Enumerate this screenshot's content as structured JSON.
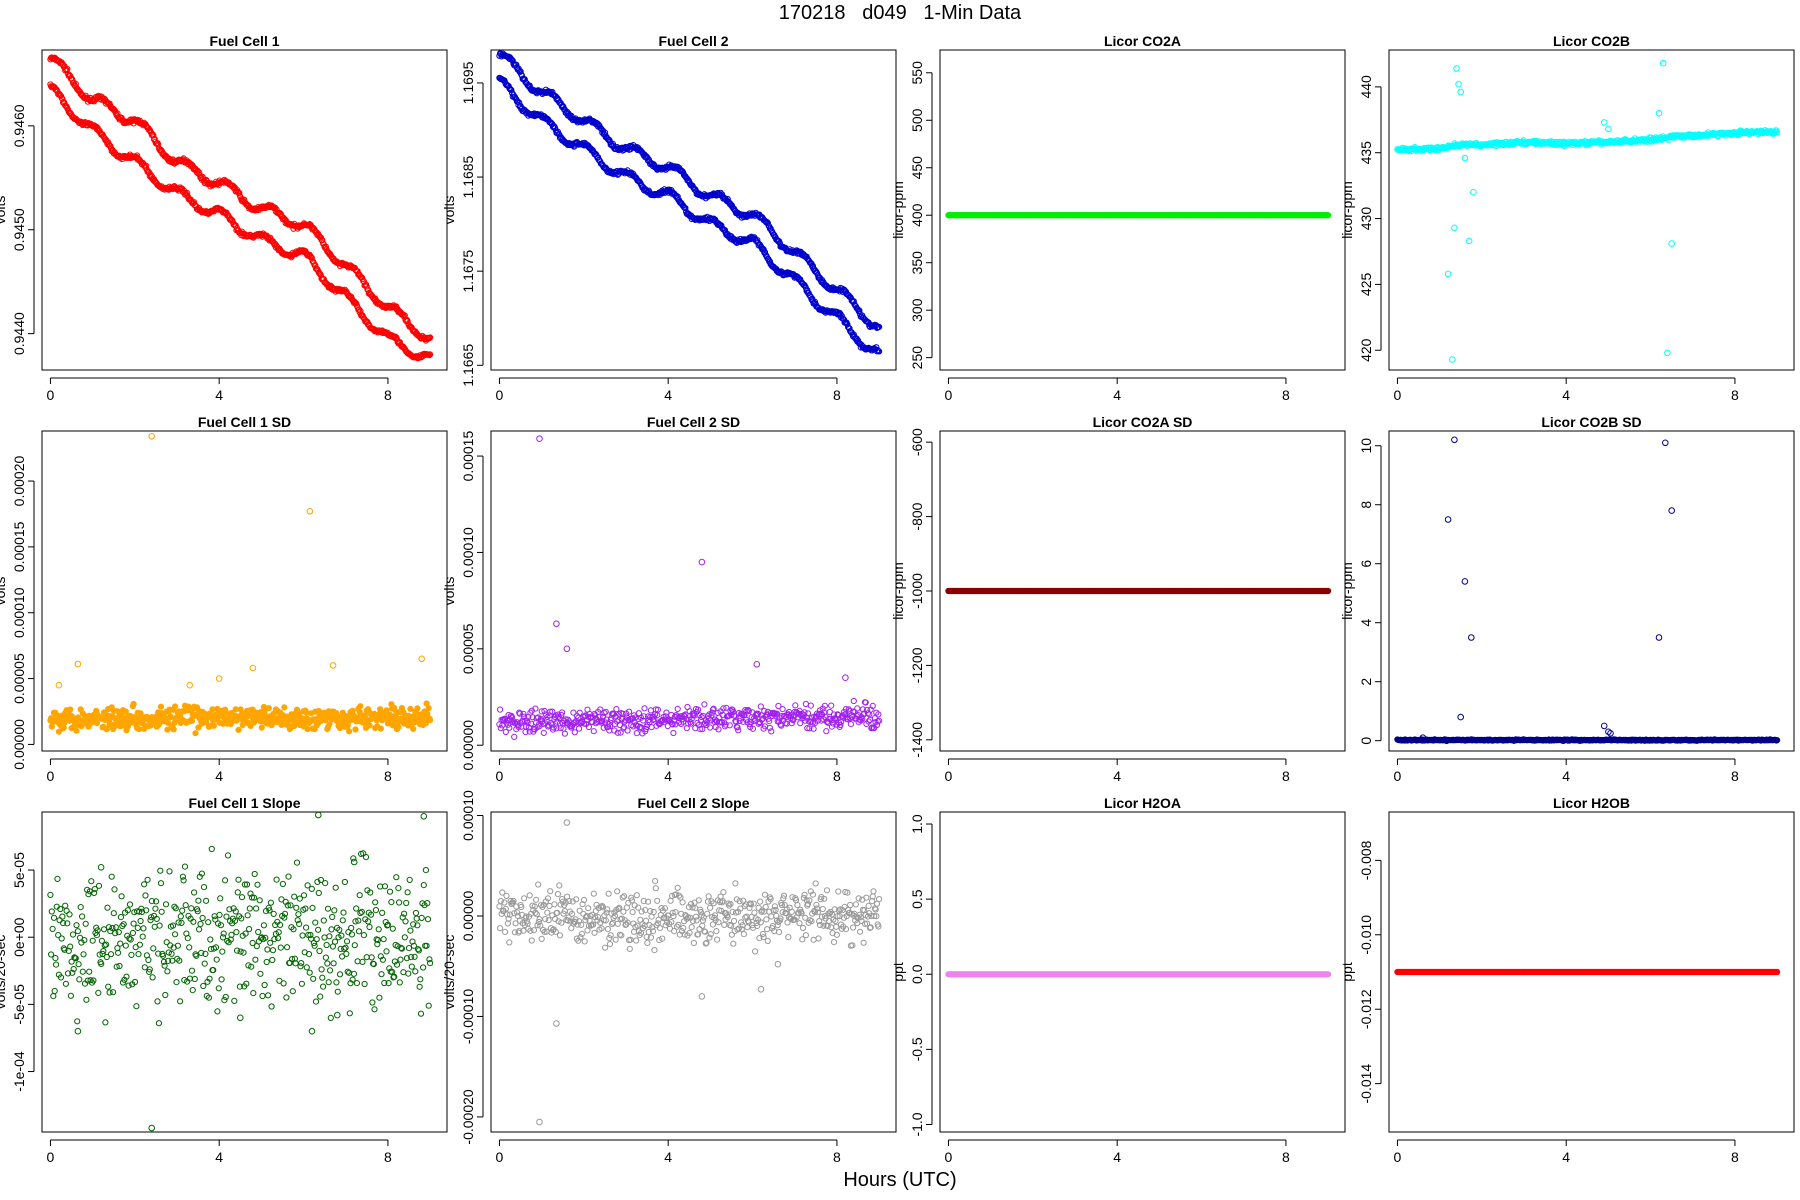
{
  "page": {
    "title": "170218   d049   1-Min Data",
    "xlabel": "Hours (UTC)"
  },
  "chart_data": [
    {
      "id": "fc1",
      "type": "scatter",
      "title": "Fuel Cell 1",
      "xlabel": "",
      "ylabel": "volts",
      "xlim": [
        -0.2,
        9.4
      ],
      "xticks": [
        0,
        4,
        8
      ],
      "xtick_labels": [
        "0",
        "4",
        "8"
      ],
      "ylim": [
        0.94365,
        0.94673
      ],
      "yticks": [
        0.944,
        0.945,
        0.946
      ],
      "ytick_labels": [
        "0.9440",
        "0.9450",
        "0.9460"
      ],
      "color": "#ff0000",
      "grid": false,
      "x": [
        0,
        1,
        2,
        3,
        4,
        5,
        6,
        7,
        8,
        9
      ],
      "series": [
        {
          "values": [
            0.94665,
            0.94625,
            0.94605,
            0.94565,
            0.94545,
            0.9452,
            0.94505,
            0.94465,
            0.94425,
            0.94395
          ]
        },
        {
          "values": [
            0.94635,
            0.94595,
            0.94565,
            0.94535,
            0.94515,
            0.9449,
            0.94475,
            0.94435,
            0.94395,
            0.94375
          ]
        }
      ]
    },
    {
      "id": "fc2",
      "type": "scatter",
      "title": "Fuel Cell 2",
      "xlabel": "",
      "ylabel": "volts",
      "xlim": [
        -0.2,
        9.4
      ],
      "xticks": [
        0,
        4,
        8
      ],
      "xtick_labels": [
        "0",
        "4",
        "8"
      ],
      "ylim": [
        1.16645,
        1.16985
      ],
      "yticks": [
        1.1665,
        1.1675,
        1.1685,
        1.1695
      ],
      "ytick_labels": [
        "1.1665",
        "1.1675",
        "1.1685",
        "1.1695"
      ],
      "color": "#0000cd",
      "grid": false,
      "x": [
        0,
        1,
        2,
        3,
        4,
        5,
        6,
        7,
        8,
        9
      ],
      "series": [
        {
          "values": [
            1.1698,
            1.1694,
            1.1691,
            1.1688,
            1.1686,
            1.1683,
            1.1681,
            1.1677,
            1.1673,
            1.1669
          ]
        },
        {
          "values": [
            1.1695,
            1.1691,
            1.1688,
            1.1685,
            1.1683,
            1.168,
            1.1678,
            1.1674,
            1.167,
            1.1666
          ]
        }
      ]
    },
    {
      "id": "co2a",
      "type": "scatter",
      "title": "Licor CO2A",
      "xlabel": "",
      "ylabel": "licor-ppm",
      "xlim": [
        -0.2,
        9.4
      ],
      "xticks": [
        0,
        4,
        8
      ],
      "xtick_labels": [
        "0",
        "4",
        "8"
      ],
      "ylim": [
        237,
        574
      ],
      "yticks": [
        250,
        300,
        350,
        400,
        450,
        500,
        550
      ],
      "ytick_labels": [
        "250",
        "300",
        "350",
        "400",
        "450",
        "500",
        "550"
      ],
      "color": "#00ee00",
      "grid": false,
      "x": [
        0,
        9
      ],
      "series": [
        {
          "values": [
            400,
            400
          ]
        }
      ]
    },
    {
      "id": "co2b",
      "type": "scatter",
      "title": "Licor CO2B",
      "xlabel": "",
      "ylabel": "licor-ppm",
      "xlim": [
        -0.2,
        9.4
      ],
      "xticks": [
        0,
        4,
        8
      ],
      "xtick_labels": [
        "0",
        "4",
        "8"
      ],
      "ylim": [
        418.5,
        442.8
      ],
      "yticks": [
        420,
        425,
        430,
        435,
        440
      ],
      "ytick_labels": [
        "420",
        "425",
        "430",
        "435",
        "440"
      ],
      "color": "#00ffff",
      "grid": false,
      "x": [
        0,
        1,
        1.4,
        2,
        3,
        4,
        5,
        6,
        6.5,
        7,
        8,
        9
      ],
      "series": [
        {
          "values": [
            435.2,
            435.3,
            435.6,
            435.6,
            435.8,
            435.7,
            435.8,
            436.0,
            436.2,
            436.3,
            436.5,
            436.6
          ]
        }
      ],
      "outliers": {
        "x": [
          1.2,
          1.3,
          1.35,
          1.4,
          1.45,
          1.5,
          1.6,
          1.7,
          1.8,
          4.9,
          5.0,
          6.2,
          6.3,
          6.4,
          6.5
        ],
        "y": [
          425.8,
          419.3,
          429.3,
          441.4,
          440.2,
          439.6,
          434.6,
          428.3,
          432.0,
          437.3,
          436.8,
          438.0,
          441.8,
          419.8,
          428.1
        ]
      }
    },
    {
      "id": "fc1sd",
      "type": "scatter",
      "title": "Fuel Cell 1 SD",
      "xlabel": "",
      "ylabel": "volts",
      "xlim": [
        -0.2,
        9.4
      ],
      "xticks": [
        0,
        4,
        8
      ],
      "xtick_labels": [
        "0",
        "4",
        "8"
      ],
      "ylim": [
        -5e-06,
        0.000238
      ],
      "yticks": [
        0,
        5e-05,
        0.0001,
        0.00015,
        0.0002
      ],
      "ytick_labels": [
        "0.00000",
        "0.00005",
        "0.00010",
        "0.00015",
        "0.00020"
      ],
      "color": "#ffa500",
      "grid": false,
      "x": [
        0,
        9
      ],
      "series": [
        {
          "values": [
            2e-05,
            2e-05
          ]
        }
      ],
      "outliers": {
        "x": [
          0.2,
          0.65,
          2.4,
          3.3,
          4.0,
          4.8,
          6.15,
          6.7,
          8.8
        ],
        "y": [
          4.5e-05,
          6.1e-05,
          0.000234,
          4.5e-05,
          5e-05,
          5.8e-05,
          0.000177,
          6e-05,
          6.5e-05
        ]
      }
    },
    {
      "id": "fc2sd",
      "type": "scatter",
      "title": "Fuel Cell 2 SD",
      "xlabel": "",
      "ylabel": "volts",
      "xlim": [
        -0.2,
        9.4
      ],
      "xticks": [
        0,
        4,
        8
      ],
      "xtick_labels": [
        "0",
        "4",
        "8"
      ],
      "ylim": [
        -3e-06,
        0.000163
      ],
      "yticks": [
        0,
        5e-05,
        0.0001,
        0.00015
      ],
      "ytick_labels": [
        "0.00000",
        "0.00005",
        "0.00010",
        "0.00015"
      ],
      "color": "#a020f0",
      "grid": false,
      "x": [
        0,
        9
      ],
      "series": [
        {
          "values": [
            1.2e-05,
            1.5e-05
          ]
        }
      ],
      "outliers": {
        "x": [
          0.95,
          1.35,
          1.6,
          4.8,
          6.1,
          8.2
        ],
        "y": [
          0.000159,
          6.3e-05,
          5e-05,
          9.5e-05,
          4.2e-05,
          3.5e-05
        ]
      }
    },
    {
      "id": "co2asd",
      "type": "scatter",
      "title": "Licor CO2A SD",
      "xlabel": "",
      "ylabel": "licor-ppm",
      "xlim": [
        -0.2,
        9.4
      ],
      "xticks": [
        0,
        4,
        8
      ],
      "xtick_labels": [
        "0",
        "4",
        "8"
      ],
      "ylim": [
        -1430,
        -570
      ],
      "yticks": [
        -1400,
        -1200,
        -1000,
        -800,
        -600
      ],
      "ytick_labels": [
        "-1400",
        "-1200",
        "-1000",
        "-800",
        "-600"
      ],
      "color": "#8b0000",
      "grid": false,
      "x": [
        0,
        9
      ],
      "series": [
        {
          "values": [
            -1000,
            -1000
          ]
        }
      ]
    },
    {
      "id": "co2bsd",
      "type": "scatter",
      "title": "Licor CO2B SD",
      "xlabel": "",
      "ylabel": "licor-ppm",
      "xlim": [
        -0.2,
        9.4
      ],
      "xticks": [
        0,
        4,
        8
      ],
      "xtick_labels": [
        "0",
        "4",
        "8"
      ],
      "ylim": [
        -0.35,
        10.5
      ],
      "yticks": [
        0,
        2,
        4,
        6,
        8,
        10
      ],
      "ytick_labels": [
        "0",
        "2",
        "4",
        "6",
        "8",
        "10"
      ],
      "color": "#00008b",
      "grid": false,
      "x": [
        0,
        9
      ],
      "series": [
        {
          "values": [
            0.02,
            0.02
          ]
        }
      ],
      "outliers": {
        "x": [
          0.6,
          1.2,
          1.35,
          1.5,
          1.6,
          1.75,
          4.9,
          5.0,
          5.05,
          6.2,
          6.35,
          6.5
        ],
        "y": [
          0.1,
          7.5,
          10.2,
          0.8,
          5.4,
          3.5,
          0.5,
          0.3,
          0.25,
          3.5,
          10.1,
          7.8
        ]
      }
    },
    {
      "id": "fc1slope",
      "type": "scatter",
      "title": "Fuel Cell 1 Slope",
      "xlabel": "",
      "ylabel": "volts/20-sec",
      "xlim": [
        -0.2,
        9.4
      ],
      "xticks": [
        0,
        4,
        8
      ],
      "xtick_labels": [
        "0",
        "4",
        "8"
      ],
      "ylim": [
        -0.000145,
        9.32e-05
      ],
      "yticks": [
        -0.0001,
        -5e-05,
        0,
        5e-05
      ],
      "ytick_labels": [
        "-1e-04",
        "-5e-05",
        "0e+00",
        "5e-05"
      ],
      "color": "#006400",
      "grid": false,
      "x": [
        0,
        9
      ],
      "series": [
        {
          "values": [
            0,
            0
          ]
        }
      ],
      "spread": 2.5e-05,
      "outliers": {
        "x": [
          0.65,
          1.2,
          2.4,
          4.5,
          6.2,
          6.35,
          6.8,
          7.2,
          8.85
        ],
        "y": [
          -7e-05,
          5.2e-05,
          -0.000142,
          -6e-05,
          -7e-05,
          9.1e-05,
          -5.8e-05,
          5.6e-05,
          9e-05
        ]
      }
    },
    {
      "id": "fc2slope",
      "type": "scatter",
      "title": "Fuel Cell 2 Slope",
      "xlabel": "",
      "ylabel": "volts/20-sec",
      "xlim": [
        -0.2,
        9.4
      ],
      "xticks": [
        0,
        4,
        8
      ],
      "xtick_labels": [
        "0",
        "4",
        "8"
      ],
      "ylim": [
        -0.000215,
        0.0001035
      ],
      "yticks": [
        -0.0002,
        -0.0001,
        0,
        0.0001
      ],
      "ytick_labels": [
        "-0.00020",
        "-0.00010",
        "0.00000",
        "0.00010"
      ],
      "color": "#999999",
      "grid": false,
      "x": [
        0,
        9
      ],
      "series": [
        {
          "values": [
            0,
            0
          ]
        }
      ],
      "spread": 1.3e-05,
      "outliers": {
        "x": [
          0.95,
          1.35,
          1.6,
          4.8,
          6.2,
          6.6
        ],
        "y": [
          -0.000205,
          -0.000107,
          9.3e-05,
          -8e-05,
          -7.3e-05,
          -4.8e-05
        ]
      }
    },
    {
      "id": "h2oa",
      "type": "scatter",
      "title": "Licor H2OA",
      "xlabel": "",
      "ylabel": "ppt",
      "xlim": [
        -0.2,
        9.4
      ],
      "xticks": [
        0,
        4,
        8
      ],
      "xtick_labels": [
        "0",
        "4",
        "8"
      ],
      "ylim": [
        -1.05,
        1.08
      ],
      "yticks": [
        -1.0,
        -0.5,
        0.0,
        0.5,
        1.0
      ],
      "ytick_labels": [
        "-1.0",
        "-0.5",
        "0.0",
        "0.5",
        "1.0"
      ],
      "color": "#ee82ee",
      "grid": false,
      "x": [
        0,
        9
      ],
      "series": [
        {
          "values": [
            0,
            0
          ]
        }
      ]
    },
    {
      "id": "h2ob",
      "type": "scatter",
      "title": "Licor H2OB",
      "xlabel": "",
      "ylabel": "ppt",
      "xlim": [
        -0.2,
        9.4
      ],
      "xticks": [
        0,
        4,
        8
      ],
      "xtick_labels": [
        "0",
        "4",
        "8"
      ],
      "ylim": [
        -0.0153,
        -0.0067
      ],
      "yticks": [
        -0.014,
        -0.012,
        -0.01,
        -0.008
      ],
      "ytick_labels": [
        "-0.014",
        "-0.012",
        "-0.010",
        "-0.008"
      ],
      "color": "#ff0000",
      "grid": false,
      "x": [
        0,
        9
      ],
      "series": [
        {
          "values": [
            -0.011,
            -0.011
          ]
        }
      ]
    }
  ]
}
